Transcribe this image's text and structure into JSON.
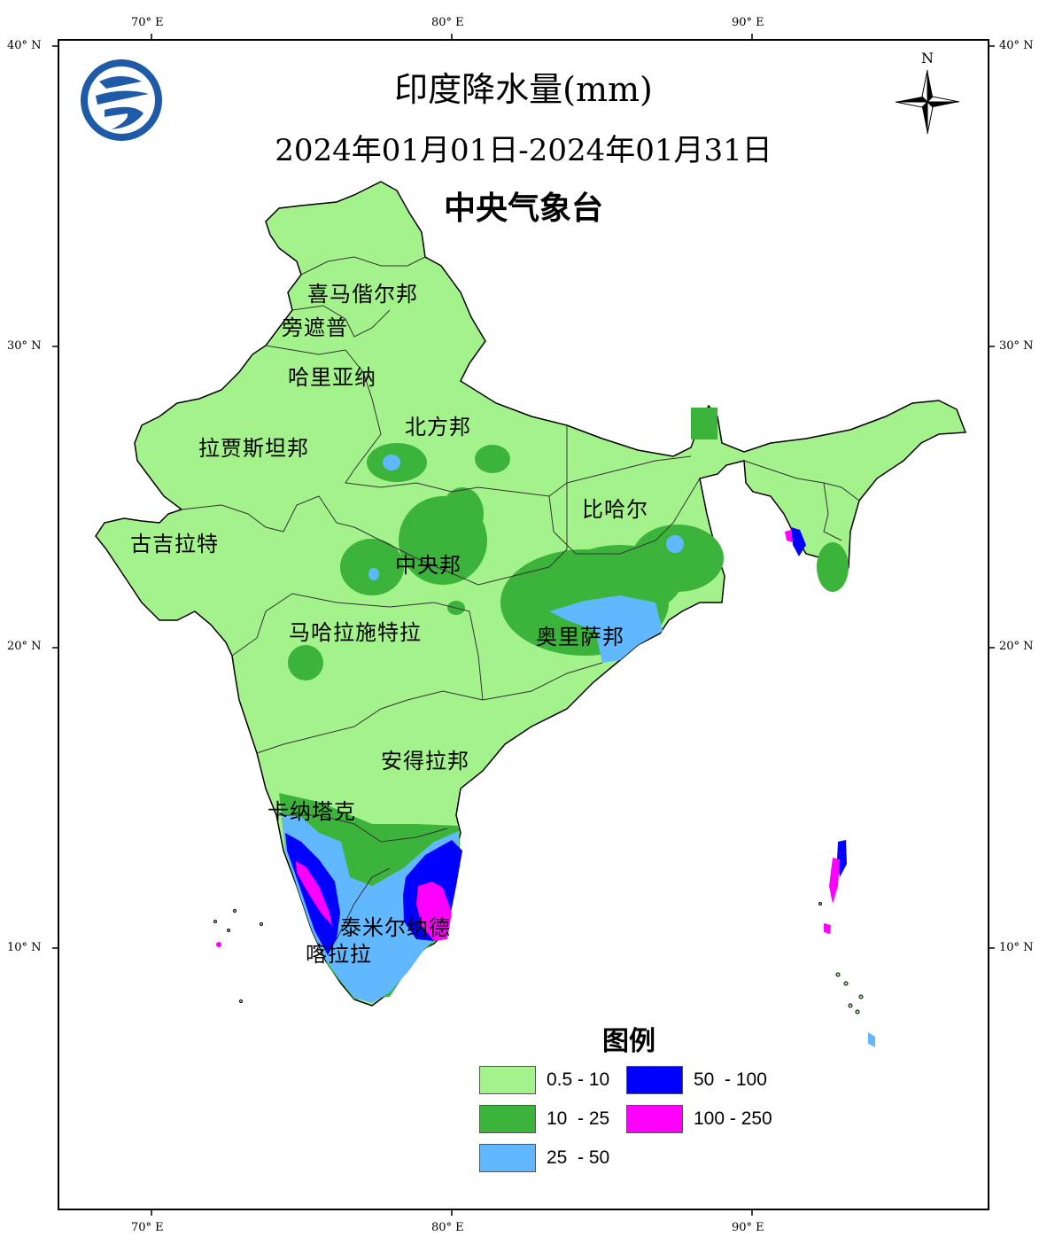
{
  "title": {
    "line1": "印度降水量(mm)",
    "line2": "2024年01月01日-2024年01月31日",
    "line3": "中央气象台"
  },
  "axes": {
    "top": [
      "70° E",
      "80° E",
      "90° E"
    ],
    "bottom": [
      "70° E",
      "80° E",
      "90° E"
    ],
    "left": [
      "40° N",
      "30° N",
      "20° N",
      "10° N"
    ],
    "right": [
      "40° N",
      "30° N",
      "20° N",
      "10° N"
    ]
  },
  "north_arrow": {
    "label": "N",
    "icon": "compass-rose-icon"
  },
  "logo": {
    "icon": "cma-logo-icon"
  },
  "regions": [
    "喜马偕尔邦",
    "旁遮普",
    "哈里亚纳",
    "北方邦",
    "拉贾斯坦邦",
    "比哈尔",
    "古吉拉特",
    "中央邦",
    "马哈拉施特拉",
    "奥里萨邦",
    "安得拉邦",
    "卡纳塔克",
    "泰米尔纳德",
    "喀拉拉"
  ],
  "legend": {
    "title": "图例",
    "items": [
      {
        "label": "0.5 - 10",
        "color": "#a3f28c"
      },
      {
        "label": "50  - 100",
        "color": "#0000ff"
      },
      {
        "label": "10  - 25",
        "color": "#3cb43c"
      },
      {
        "label": "100 - 250",
        "color": "#ff00ff"
      },
      {
        "label": "25  - 50",
        "color": "#62b8ff"
      }
    ]
  },
  "colors": {
    "light_green": "#a3f28c",
    "green": "#3cb43c",
    "light_blue": "#62b8ff",
    "blue": "#0000ff",
    "magenta": "#ff00ff"
  }
}
